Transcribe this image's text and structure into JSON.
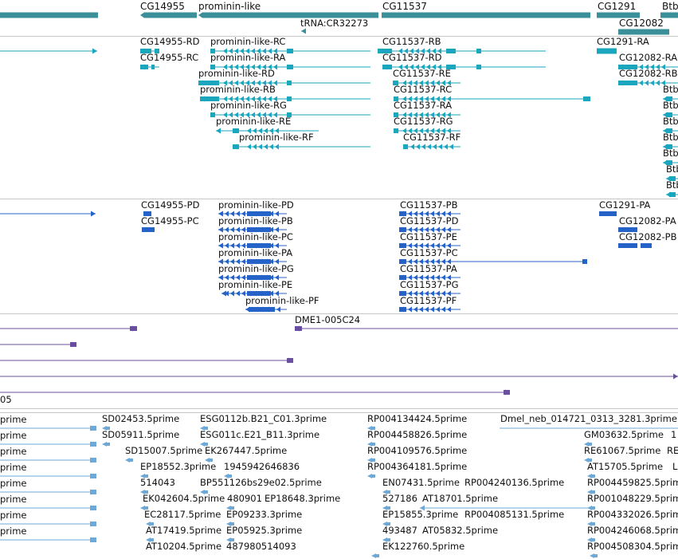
{
  "colors": {
    "gene": "#3a8f98",
    "transcript": "#1aa6bd",
    "protein": "#2563c9",
    "clone": "#6a4fa0",
    "est": "#6ea8d6",
    "separator": "#c8c8c8"
  },
  "tracks": {
    "genes": {
      "labels": [
        "CG14955",
        "prominin-like",
        "tRNA:CR32273",
        "CG11537",
        "CG1291",
        "CG12082",
        "Btb"
      ]
    },
    "transcripts": {
      "labels": [
        "CG14955-RD",
        "CG14955-RC",
        "prominin-like-RC",
        "prominin-like-RA",
        "prominin-like-RD",
        "prominin-like-RB",
        "prominin-like-RG",
        "prominin-like-RE",
        "prominin-like-RF",
        "CG11537-RB",
        "CG11537-RD",
        "CG11537-RE",
        "CG11537-RC",
        "CG11537-RA",
        "CG11537-RG",
        "CG11537-RF",
        "CG1291-RA",
        "CG12082-RA",
        "CG12082-RB",
        "Btb",
        "Btb",
        "Btb",
        "Btb",
        "Btb",
        "Btb",
        "Btb"
      ]
    },
    "proteins": {
      "labels": [
        "CG14955-PD",
        "CG14955-PC",
        "prominin-like-PD",
        "prominin-like-PB",
        "prominin-like-PC",
        "prominin-like-PA",
        "prominin-like-PG",
        "prominin-like-PE",
        "prominin-like-PF",
        "CG11537-PB",
        "CG11537-PD",
        "CG11537-PE",
        "CG11537-PC",
        "CG11537-PA",
        "CG11537-PG",
        "CG11537-PF",
        "CG1291-PA",
        "CG12082-PA",
        "CG12082-PB"
      ]
    },
    "clones": {
      "labels": [
        "DME1-005C24",
        "05"
      ]
    },
    "ests": {
      "labels": [
        "prime",
        "prime",
        "prime",
        "prime",
        "prime",
        "prime",
        "prime",
        "prime",
        "SD02453.5prime",
        "SD05911.5prime",
        "SD15007.5prime",
        "EP18552.3prime",
        "514043",
        "EK042604.5prime",
        "EC28117.5prime",
        "AT17419.5prime",
        "AT10204.5prime",
        "ESG0112b.B21_C01.3prime",
        "ESG011c.E21_B11.3prime",
        "EK267447.5prime",
        "1945942646836",
        "BP551126bs29e02.5prime",
        "480901",
        "EP18648.3prime",
        "EP09233.3prime",
        "EP05925.3prime",
        "487980514093",
        "RP004134424.5prime",
        "RP004458826.5prime",
        "RP004109576.5prime",
        "RP004364181.5prime",
        "EN07431.5prime",
        "RP004240136.5prime",
        "527186",
        "AT18701.5prime",
        "EP15855.3prime",
        "RP004085131.5prime",
        "493487",
        "AT05832.5prime",
        "EK122760.5prime",
        "Dmel_neb_014721_0313_3281.3prime",
        "GM03632.5prime",
        "RE61067.5prime",
        "AT15705.5prime",
        "RP004459825.5prime",
        "RP001048229.5prime",
        "RP004332026.5prime",
        "RP004246068.5prime",
        "RP004508304.5prime",
        "1",
        "RE6",
        "L"
      ]
    }
  }
}
